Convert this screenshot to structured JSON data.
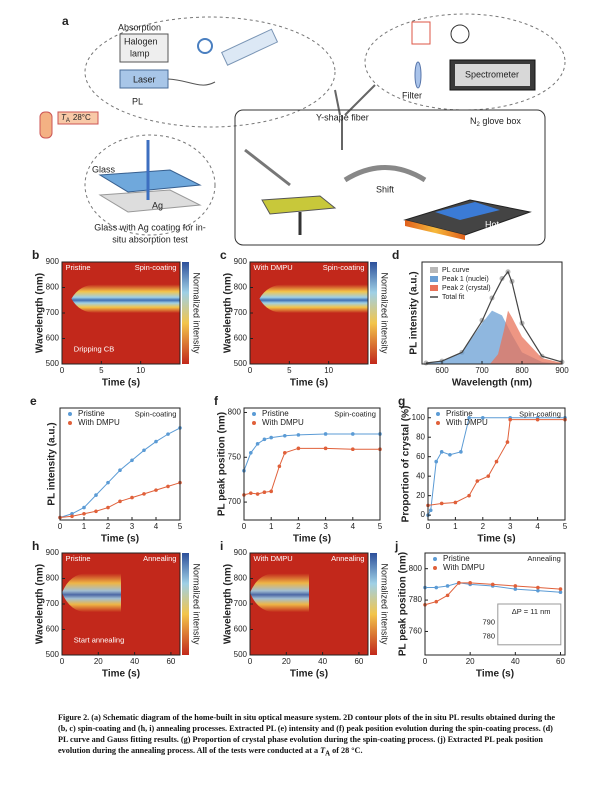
{
  "schematic": {
    "label": "a",
    "absorption": "Absorption",
    "halogen_line1": "Halogen",
    "halogen_line2": "lamp",
    "laser": "Laser",
    "pl": "PL",
    "filter": "Filter",
    "spectrometer": "Spectrometer",
    "temp_var": "T",
    "temp_sub": "A",
    "temp_value": "28°C",
    "fiber": "Y-shape fiber",
    "glovebox_main": "N",
    "glovebox_sub": "2",
    "glovebox_tail": " glove box",
    "glass": "Glass",
    "ag": "Ag",
    "glass_caption_line1": "Glass with Ag coating for in-",
    "glass_caption_line2": "situ absorption test",
    "shift": "Shift",
    "hot_plate": "Hot plate"
  },
  "panels": [
    {
      "label": "b",
      "type": "heatmap",
      "xlabel": "Time (s)",
      "ylabel": "Wavelength (nm)",
      "xlim": [
        0,
        15
      ],
      "ylim": [
        500,
        900
      ],
      "xticks": [
        0,
        5,
        10
      ],
      "yticks": [
        500,
        600,
        700,
        800,
        900
      ],
      "colorbar_label": "Normalized intensity",
      "annotations": [
        "Pristine",
        "Spin-coating",
        "Dripping CB"
      ]
    },
    {
      "label": "c",
      "type": "heatmap",
      "xlabel": "Time (s)",
      "ylabel": "Wavelength (nm)",
      "xlim": [
        0,
        15
      ],
      "ylim": [
        500,
        900
      ],
      "xticks": [
        0,
        5,
        10
      ],
      "yticks": [
        500,
        600,
        700,
        800,
        900
      ],
      "colorbar_label": "Normalized intensity",
      "annotations": [
        "With DMPU",
        "Spin-coating"
      ]
    },
    {
      "label": "d",
      "type": "spectrum",
      "xlabel": "Wavelength (nm)",
      "ylabel": "PL intensity (a.u.)",
      "xlim": [
        550,
        900
      ],
      "ylim": [
        0,
        1.05
      ],
      "xticks": [
        600,
        700,
        800,
        900
      ],
      "yticks": [],
      "annotations": [],
      "series": [
        {
          "name": "PL curve",
          "color": "#b8b8b8",
          "x": [
            560,
            600,
            650,
            700,
            725,
            750,
            765,
            775,
            800,
            850,
            900
          ],
          "values": [
            0.01,
            0.03,
            0.12,
            0.45,
            0.68,
            0.88,
            0.95,
            0.85,
            0.42,
            0.08,
            0.02
          ]
        },
        {
          "name": "Peak 1 (nuclei)",
          "color": "#6a9fd4",
          "x": [
            560,
            600,
            650,
            700,
            725,
            750,
            775,
            800,
            850,
            900
          ],
          "values": [
            0.01,
            0.03,
            0.12,
            0.42,
            0.55,
            0.5,
            0.3,
            0.12,
            0.02,
            0
          ]
        },
        {
          "name": "Peak 2 (crystal)",
          "color": "#e8735a",
          "x": [
            720,
            740,
            755,
            765,
            775,
            800,
            850,
            900
          ],
          "values": [
            0,
            0.1,
            0.35,
            0.55,
            0.48,
            0.28,
            0.06,
            0.01
          ]
        },
        {
          "name": "Total fit",
          "color": "#444444",
          "x": [
            560,
            600,
            650,
            700,
            725,
            750,
            765,
            775,
            800,
            850,
            900
          ],
          "values": [
            0.01,
            0.03,
            0.12,
            0.44,
            0.67,
            0.87,
            0.95,
            0.84,
            0.41,
            0.08,
            0.02
          ]
        }
      ]
    },
    {
      "label": "e",
      "type": "line",
      "xlabel": "Time (s)",
      "ylabel": "PL intensity (a.u.)",
      "xlim": [
        0,
        5
      ],
      "ylim": [
        0,
        0.9
      ],
      "xticks": [
        0,
        1,
        2,
        3,
        4,
        5
      ],
      "yticks": [],
      "annotations": [
        "Spin-coating"
      ],
      "series": [
        {
          "name": "Pristine",
          "color": "#5b9bd5",
          "x": [
            0,
            0.5,
            1,
            1.5,
            2,
            2.5,
            3,
            3.5,
            4,
            4.5,
            5
          ],
          "values": [
            0.02,
            0.05,
            0.1,
            0.2,
            0.3,
            0.4,
            0.48,
            0.56,
            0.63,
            0.69,
            0.74
          ]
        },
        {
          "name": "With DMPU",
          "color": "#e0603a",
          "x": [
            0,
            0.5,
            1,
            1.5,
            2,
            2.5,
            3,
            3.5,
            4,
            4.5,
            5
          ],
          "values": [
            0.02,
            0.03,
            0.05,
            0.07,
            0.1,
            0.15,
            0.18,
            0.21,
            0.24,
            0.27,
            0.3
          ]
        }
      ]
    },
    {
      "label": "f",
      "type": "line",
      "xlabel": "Time (s)",
      "ylabel": "PL peak position (nm)",
      "xlim": [
        0,
        5
      ],
      "ylim": [
        680,
        805
      ],
      "xticks": [
        0,
        1,
        2,
        3,
        4,
        5
      ],
      "yticks": [
        700,
        750,
        800
      ],
      "annotations": [
        "Spin-coating"
      ],
      "series": [
        {
          "name": "Pristine",
          "color": "#5b9bd5",
          "x": [
            0,
            0.25,
            0.5,
            0.75,
            1,
            1.5,
            2,
            3,
            4,
            5
          ],
          "values": [
            735,
            755,
            765,
            770,
            772,
            774,
            775,
            776,
            776,
            776
          ]
        },
        {
          "name": "With DMPU",
          "color": "#e0603a",
          "x": [
            0,
            0.25,
            0.5,
            0.75,
            1,
            1.3,
            1.5,
            2,
            3,
            4,
            5
          ],
          "values": [
            708,
            710,
            709,
            711,
            712,
            740,
            755,
            760,
            760,
            759,
            759
          ]
        }
      ]
    },
    {
      "label": "g",
      "type": "line",
      "xlabel": "Time (s)",
      "ylabel": "Proportion of crystal (%)",
      "xlim": [
        0,
        5
      ],
      "ylim": [
        -5,
        110
      ],
      "xticks": [
        0,
        1,
        2,
        3,
        4,
        5
      ],
      "yticks": [
        0,
        20,
        40,
        60,
        80,
        100
      ],
      "annotations": [
        "Spin-coating"
      ],
      "series": [
        {
          "name": "Pristine",
          "color": "#5b9bd5",
          "x": [
            0,
            0.1,
            0.3,
            0.5,
            0.8,
            1.2,
            1.5,
            2,
            3,
            4,
            5
          ],
          "values": [
            0,
            5,
            55,
            65,
            62,
            65,
            100,
            100,
            100,
            100,
            100
          ]
        },
        {
          "name": "With DMPU",
          "color": "#e0603a",
          "x": [
            0,
            0.5,
            1,
            1.5,
            1.8,
            2.2,
            2.5,
            2.9,
            3,
            4,
            5
          ],
          "values": [
            10,
            12,
            13,
            20,
            35,
            40,
            55,
            75,
            98,
            98,
            98
          ]
        }
      ]
    },
    {
      "label": "h",
      "type": "heatmap",
      "xlabel": "Time (s)",
      "ylabel": "Wavelength (nm)",
      "xlim": [
        0,
        65
      ],
      "ylim": [
        500,
        900
      ],
      "xticks": [
        0,
        20,
        40,
        60
      ],
      "yticks": [
        500,
        600,
        700,
        800,
        900
      ],
      "colorbar_label": "Normalized intensity",
      "annotations": [
        "Pristine",
        "Annealing",
        "Start annealing"
      ]
    },
    {
      "label": "i",
      "type": "heatmap",
      "xlabel": "Time (s)",
      "ylabel": "Wavelength (nm)",
      "xlim": [
        0,
        65
      ],
      "ylim": [
        500,
        900
      ],
      "xticks": [
        0,
        20,
        40,
        60
      ],
      "yticks": [
        500,
        600,
        700,
        800,
        900
      ],
      "colorbar_label": "Normalized intensity",
      "annotations": [
        "With DMPU",
        "Annealing"
      ]
    },
    {
      "label": "j",
      "type": "line",
      "xlabel": "Time (s)",
      "ylabel": "PL peak position (nm)",
      "xlim": [
        0,
        62
      ],
      "ylim": [
        745,
        810
      ],
      "xticks": [
        0,
        20,
        40,
        60
      ],
      "yticks": [
        760,
        780,
        800
      ],
      "annotations": [
        "Annealing",
        "ΔP = 11 nm",
        "790",
        "780"
      ],
      "series": [
        {
          "name": "Pristine",
          "color": "#5b9bd5",
          "x": [
            0,
            5,
            10,
            15,
            20,
            30,
            40,
            50,
            60
          ],
          "values": [
            788,
            788,
            789,
            791,
            790,
            789,
            787,
            786,
            785
          ]
        },
        {
          "name": "With DMPU",
          "color": "#e0603a",
          "x": [
            0,
            5,
            10,
            15,
            20,
            30,
            40,
            50,
            60
          ],
          "values": [
            777,
            779,
            783,
            791,
            791,
            790,
            789,
            788,
            787
          ]
        }
      ]
    }
  ],
  "caption": {
    "text": "Figure 2. (a) Schematic diagram of the home-built in situ optical measure system. 2D contour plots of the in situ PL results obtained during the (b, c) spin-coating and (h, i) annealing processes. Extracted PL (e) intensity and (f) peak position evolution during the spin-coating process. (d) PL curve and Gauss fitting results. (g) Proportion of crystal phase evolution during the spin-coating process. (j) Extracted PL peak position evolution during the annealing process. All of the tests were conducted at a ",
    "var": "T",
    "sub": "A",
    "tail": " of 28 °C."
  }
}
